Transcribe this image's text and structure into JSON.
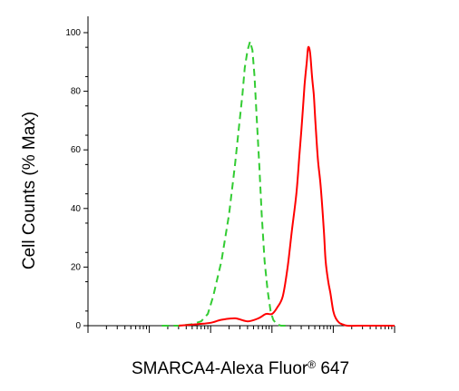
{
  "chart_data": {
    "type": "line",
    "title": "",
    "xlabel": "SMARCA4-Alexa Fluor",
    "xlabel_symbol": "®",
    "xlabel_suffix": " 647",
    "ylabel": "Cell Counts (% Max)",
    "xscale": "log",
    "xlim": [
      1,
      100000
    ],
    "ylim": [
      0,
      100
    ],
    "yticks": [
      0,
      20,
      40,
      60,
      80,
      100
    ],
    "grid": false,
    "legend": "none",
    "series": [
      {
        "color": "#33cc33",
        "style": "dashed",
        "x": [
          16,
          30,
          50,
          70,
          90,
          110,
          150,
          200,
          250,
          290,
          330,
          360,
          400,
          440,
          480,
          520,
          560,
          620,
          680,
          760,
          850,
          950,
          1050,
          1200,
          1400,
          1800
        ],
        "y": [
          0,
          0,
          0.5,
          1.5,
          4,
          10,
          22,
          38,
          55,
          68,
          79,
          88,
          94,
          97,
          94,
          85,
          72,
          55,
          38,
          22,
          12,
          5,
          2,
          0.5,
          0,
          0
        ]
      },
      {
        "color": "#ff0000",
        "style": "solid",
        "x": [
          30,
          60,
          100,
          150,
          250,
          400,
          600,
          800,
          1000,
          1200,
          1500,
          1800,
          2100,
          2500,
          2800,
          3100,
          3400,
          3700,
          3900,
          4200,
          4500,
          4800,
          5100,
          5600,
          6200,
          7000,
          7500,
          8300,
          9000,
          10000,
          11000,
          12500,
          14000,
          17000,
          25000,
          40000,
          100000
        ],
        "y": [
          0,
          0.5,
          1,
          2,
          2.5,
          1.5,
          2.5,
          4,
          4,
          6,
          10,
          20,
          32,
          45,
          58,
          70,
          82,
          90,
          95,
          93,
          85,
          79,
          70,
          57,
          48,
          33,
          22,
          15,
          11,
          5,
          2.5,
          1,
          0.5,
          0,
          0,
          0,
          0
        ]
      }
    ]
  }
}
